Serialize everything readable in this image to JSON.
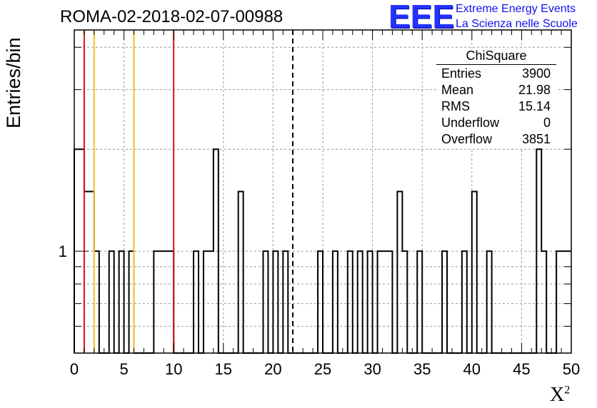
{
  "title": "ROMA-02-2018-02-07-00988",
  "logo": {
    "mark": "EEE",
    "line1": "Extreme Energy Events",
    "line2": "La Scienza nelle Scuole",
    "color": "#2233ff"
  },
  "stats": {
    "name": "ChiSquare",
    "rows": [
      {
        "key": "Entries",
        "value": "3900"
      },
      {
        "key": "Mean",
        "value": "21.98"
      },
      {
        "key": "RMS",
        "value": "15.14"
      },
      {
        "key": "Underflow",
        "value": "0"
      },
      {
        "key": "Overflow",
        "value": "3851"
      }
    ]
  },
  "chart_data": {
    "type": "bar",
    "histogram": true,
    "title": "ROMA-02-2018-02-07-00988",
    "xlabel": "X",
    "xlabel_sup": "2",
    "ylabel": "Entries/bin",
    "xlim": [
      0,
      50
    ],
    "ylim": [
      0.5,
      4.5
    ],
    "yscale": "log",
    "grid": true,
    "xticks": [
      "0",
      "5",
      "10",
      "15",
      "20",
      "25",
      "30",
      "35",
      "40",
      "45",
      "50"
    ],
    "yticks": [
      "1"
    ],
    "bin_width": 0.5,
    "bins": [
      {
        "x": 0.0,
        "count": 2
      },
      {
        "x": 0.5,
        "count": 2
      },
      {
        "x": 1.0,
        "count": 1.5
      },
      {
        "x": 1.5,
        "count": 1.5
      },
      {
        "x": 2.0,
        "count": 1
      },
      {
        "x": 3.5,
        "count": 1
      },
      {
        "x": 4.5,
        "count": 1
      },
      {
        "x": 5.5,
        "count": 1
      },
      {
        "x": 8.0,
        "count": 1
      },
      {
        "x": 8.5,
        "count": 1
      },
      {
        "x": 9.0,
        "count": 1
      },
      {
        "x": 9.5,
        "count": 1
      },
      {
        "x": 12.0,
        "count": 1
      },
      {
        "x": 13.0,
        "count": 1
      },
      {
        "x": 13.5,
        "count": 1
      },
      {
        "x": 14.0,
        "count": 2
      },
      {
        "x": 16.5,
        "count": 1.5
      },
      {
        "x": 19.0,
        "count": 1
      },
      {
        "x": 20.0,
        "count": 1
      },
      {
        "x": 21.0,
        "count": 1
      },
      {
        "x": 24.5,
        "count": 1
      },
      {
        "x": 26.0,
        "count": 1
      },
      {
        "x": 27.5,
        "count": 1
      },
      {
        "x": 28.5,
        "count": 1
      },
      {
        "x": 29.5,
        "count": 1
      },
      {
        "x": 30.5,
        "count": 1
      },
      {
        "x": 31.0,
        "count": 1
      },
      {
        "x": 31.5,
        "count": 1
      },
      {
        "x": 32.5,
        "count": 1.5
      },
      {
        "x": 33.0,
        "count": 1
      },
      {
        "x": 34.5,
        "count": 1
      },
      {
        "x": 37.0,
        "count": 1
      },
      {
        "x": 39.0,
        "count": 1
      },
      {
        "x": 40.0,
        "count": 1.5
      },
      {
        "x": 41.5,
        "count": 1
      },
      {
        "x": 46.5,
        "count": 2
      },
      {
        "x": 47.0,
        "count": 1
      },
      {
        "x": 48.5,
        "count": 1
      },
      {
        "x": 49.0,
        "count": 1
      },
      {
        "x": 49.5,
        "count": 1
      }
    ],
    "vlines": [
      {
        "x": 1,
        "color": "#dd1111",
        "style": "solid"
      },
      {
        "x": 2,
        "color": "#f0c020",
        "style": "solid"
      },
      {
        "x": 6,
        "color": "#f0c020",
        "style": "solid"
      },
      {
        "x": 10,
        "color": "#dd1111",
        "style": "solid"
      },
      {
        "x": 21.98,
        "color": "#000000",
        "style": "dashed"
      }
    ]
  }
}
